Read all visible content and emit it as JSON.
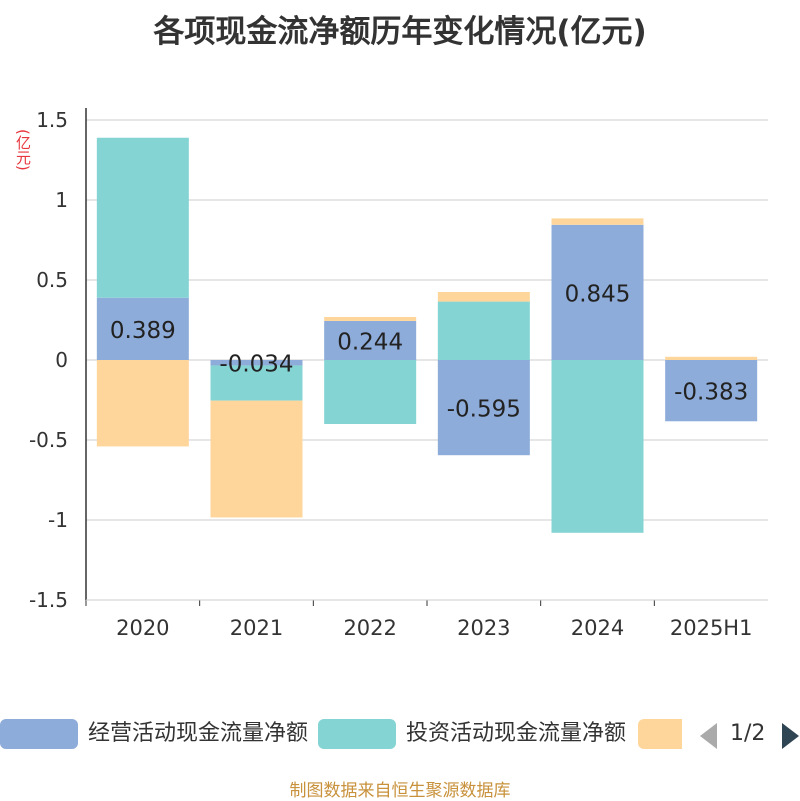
{
  "title": "各项现金流净额历年变化情况(亿元)",
  "unit_label": "(亿元)",
  "source": "制图数据来自恒生聚源数据库",
  "legend": {
    "items": [
      {
        "label": "经营活动现金流量净额",
        "color": "#8eacd9"
      },
      {
        "label": "投资活动现金流量净额",
        "color": "#84d4d4"
      },
      {
        "label": "",
        "color": "#fed69b"
      }
    ],
    "page": "1/2"
  },
  "chart_data": {
    "type": "bar",
    "stacked": true,
    "categories": [
      "2020",
      "2021",
      "2022",
      "2023",
      "2024",
      "2025H1"
    ],
    "series": [
      {
        "name": "经营活动现金流量净额",
        "color": "#8eacd9",
        "values": [
          0.389,
          -0.034,
          0.244,
          -0.595,
          0.845,
          -0.383
        ]
      },
      {
        "name": "投资活动现金流量净额",
        "color": "#84d4d4",
        "values": [
          1.0,
          -0.22,
          -0.4,
          0.365,
          -1.08,
          0.0
        ]
      },
      {
        "name": "",
        "color": "#fed69b",
        "values": [
          -0.54,
          -0.73,
          0.025,
          0.06,
          0.04,
          0.02
        ]
      }
    ],
    "data_labels": [
      "0.389",
      "-0.034",
      "0.244",
      "-0.595",
      "0.845",
      "-0.383"
    ],
    "y_ticks": [
      "1.5",
      "1",
      "0.5",
      "0",
      "-0.5",
      "-1",
      "-1.5"
    ],
    "ylim": [
      -1.5,
      1.5
    ],
    "grid": true,
    "legend_position": "bottom"
  }
}
